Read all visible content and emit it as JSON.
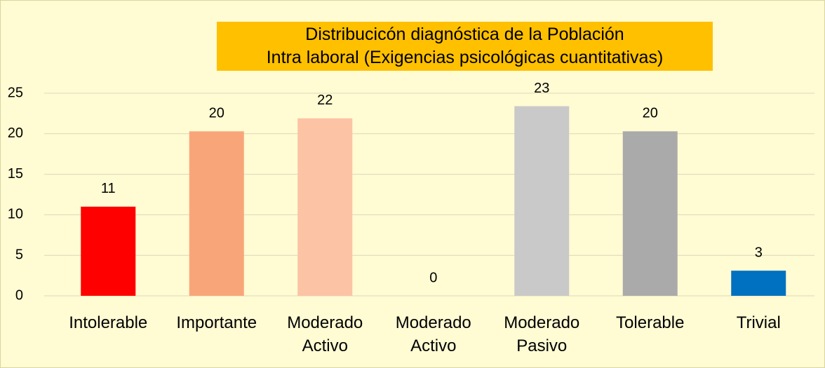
{
  "chart_data": {
    "type": "bar",
    "title": "Distribucicón diagnóstica de la Población\nIntra laboral (Exigencias psicológicas cuantitativas)",
    "categories": [
      "Intolerable",
      "Importante",
      "Moderado Activo",
      "Moderado Activo",
      "Moderado Pasivo",
      "Tolerable",
      "Trivial"
    ],
    "values": [
      11,
      20.3,
      21.9,
      0,
      23.4,
      20.3,
      3.1
    ],
    "value_labels": [
      "11",
      "20",
      "22",
      "0",
      "23",
      "20",
      "3"
    ],
    "colors": [
      "#ff0000",
      "#f9a57a",
      "#fcc3a5",
      "#d9d9d9",
      "#c9c9c9",
      "#aaaaaa",
      "#0070c0"
    ],
    "ylim": [
      0,
      25
    ],
    "yticks": [
      0,
      5,
      10,
      15,
      20,
      25
    ],
    "grid": true
  }
}
